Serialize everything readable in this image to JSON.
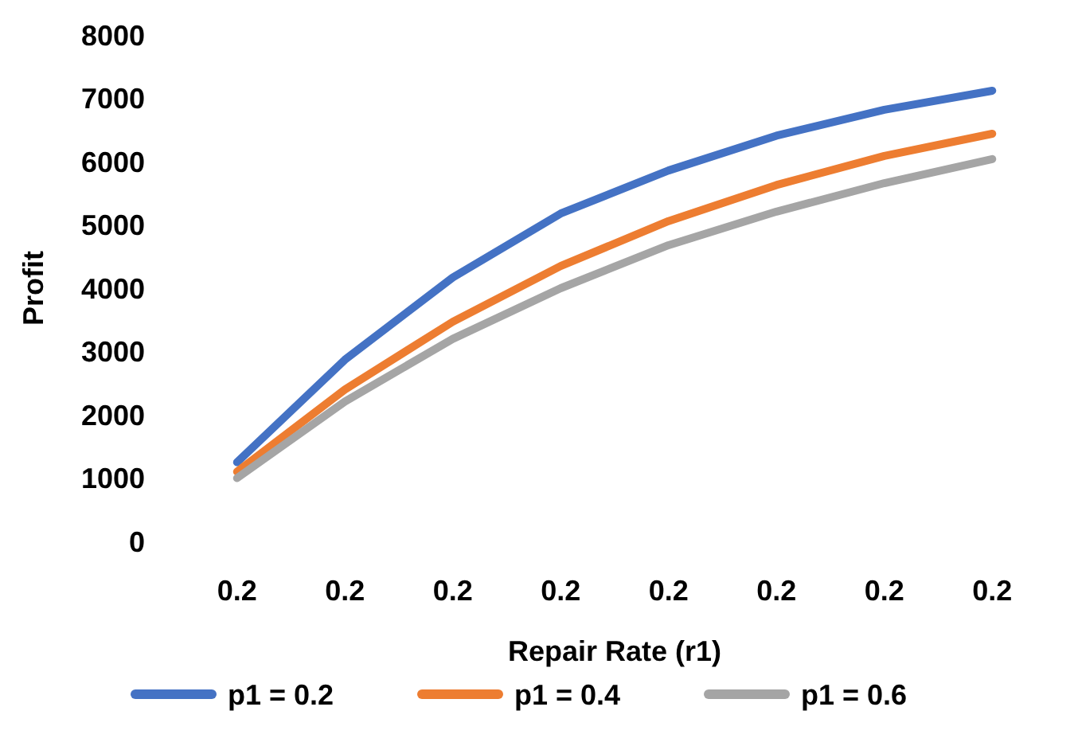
{
  "chart_data": {
    "type": "line",
    "xlabel": "Repair Rate (r1)",
    "ylabel": "Profit",
    "categories": [
      "0.2",
      "0.2",
      "0.2",
      "0.2",
      "0.2",
      "0.2",
      "0.2",
      "0.2"
    ],
    "ylim": [
      0,
      8000
    ],
    "yticks": [
      0,
      1000,
      2000,
      3000,
      4000,
      5000,
      6000,
      7000,
      8000
    ],
    "grid": false,
    "legend": "bottom",
    "marker": "none",
    "line_style": "solid",
    "series": [
      {
        "name": "p1 = 0.2",
        "color": "#4472c4",
        "values": [
          1250,
          2870,
          4170,
          5180,
          5860,
          6410,
          6820,
          7120
        ]
      },
      {
        "name": "p1 = 0.4",
        "color": "#ed7d31",
        "values": [
          1100,
          2400,
          3470,
          4350,
          5060,
          5630,
          6090,
          6440
        ]
      },
      {
        "name": "p1 = 0.6",
        "color": "#a5a5a5",
        "values": [
          1000,
          2210,
          3200,
          4000,
          4680,
          5210,
          5660,
          6040
        ]
      }
    ]
  }
}
